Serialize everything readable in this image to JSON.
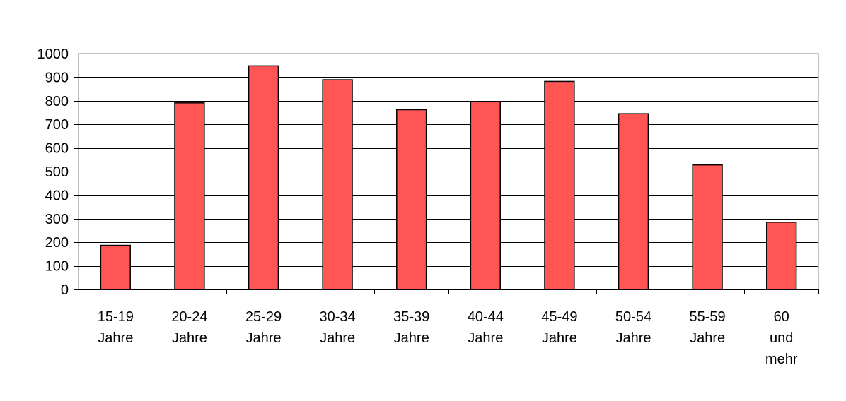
{
  "chart_data": {
    "type": "bar",
    "title": "",
    "xlabel": "",
    "ylabel": "",
    "categories": [
      [
        "15-19",
        "Jahre"
      ],
      [
        "20-24",
        "Jahre"
      ],
      [
        "25-29",
        "Jahre"
      ],
      [
        "30-34",
        "Jahre"
      ],
      [
        "35-39",
        "Jahre"
      ],
      [
        "40-44",
        "Jahre"
      ],
      [
        "45-49",
        "Jahre"
      ],
      [
        "50-54",
        "Jahre"
      ],
      [
        "55-59",
        "Jahre"
      ],
      [
        "60",
        "und",
        "mehr"
      ]
    ],
    "values": [
      187,
      791,
      948,
      889,
      762,
      797,
      882,
      745,
      528,
      285
    ],
    "ylim": [
      0,
      1000
    ],
    "yticks": [
      0,
      100,
      200,
      300,
      400,
      500,
      600,
      700,
      800,
      900,
      1000
    ],
    "grid": true,
    "legend": "none",
    "bar_color": "#FF5555",
    "bar_stroke": "#000000"
  }
}
